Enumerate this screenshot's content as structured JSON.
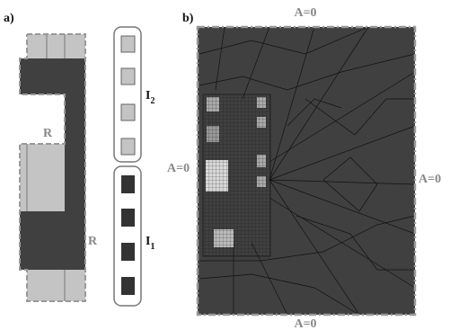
{
  "panels": {
    "a": {
      "label": "a)",
      "gap_labels": [
        "R",
        "R"
      ],
      "coils": [
        {
          "base": "I",
          "sub": "2"
        },
        {
          "base": "I",
          "sub": "1"
        }
      ]
    },
    "b": {
      "label": "b)",
      "boundaries": {
        "top": "A=0",
        "left": "A=0",
        "right": "A=0",
        "bottom": "A=0"
      }
    }
  }
}
